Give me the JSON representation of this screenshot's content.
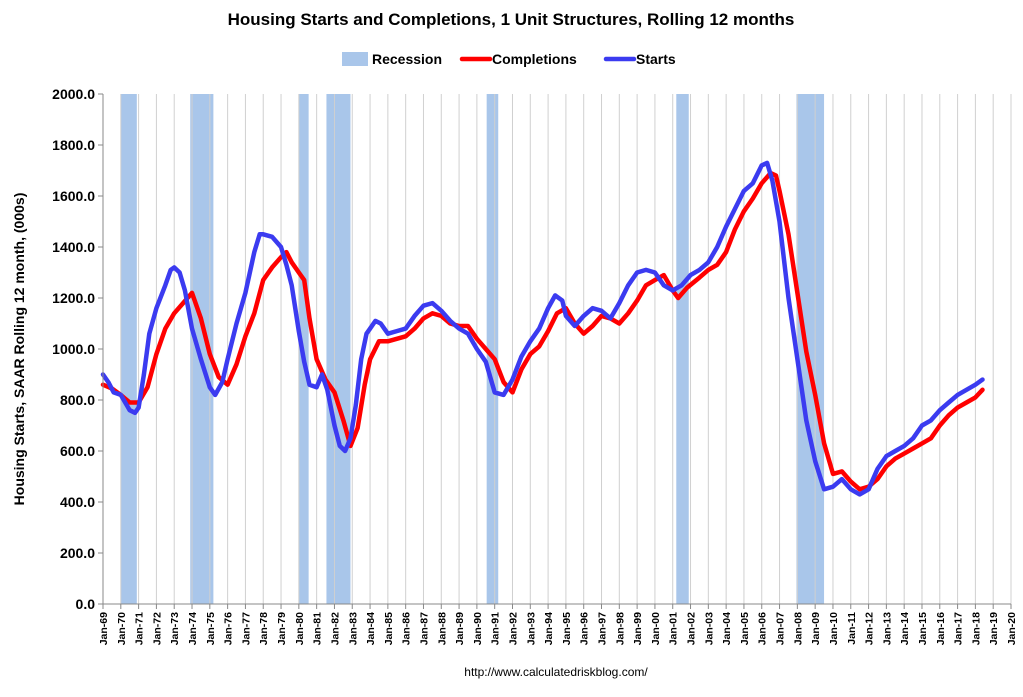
{
  "chart_data": {
    "type": "line",
    "title": "Housing Starts and Completions, 1 Unit Structures, Rolling 12 months",
    "ylabel": "Housing Starts, SAAR Rolling 12 month, (000s)",
    "xlabel": "",
    "source": "http://www.calculatedriskblog.com/",
    "ylim": [
      0,
      2000
    ],
    "yticks": [
      "0.0",
      "200.0",
      "400.0",
      "600.0",
      "800.0",
      "1000.0",
      "1200.0",
      "1400.0",
      "1600.0",
      "1800.0",
      "2000.0"
    ],
    "xlim": [
      1969.0,
      2020.0
    ],
    "xtick_labels": [
      "Jan-69",
      "Jan-70",
      "Jan-71",
      "Jan-72",
      "Jan-73",
      "Jan-74",
      "Jan-75",
      "Jan-76",
      "Jan-77",
      "Jan-78",
      "Jan-79",
      "Jan-80",
      "Jan-81",
      "Jan-82",
      "Jan-83",
      "Jan-84",
      "Jan-85",
      "Jan-86",
      "Jan-87",
      "Jan-88",
      "Jan-89",
      "Jan-90",
      "Jan-91",
      "Jan-92",
      "Jan-93",
      "Jan-94",
      "Jan-95",
      "Jan-96",
      "Jan-97",
      "Jan-98",
      "Jan-99",
      "Jan-00",
      "Jan-01",
      "Jan-02",
      "Jan-03",
      "Jan-04",
      "Jan-05",
      "Jan-06",
      "Jan-07",
      "Jan-08",
      "Jan-09",
      "Jan-10",
      "Jan-11",
      "Jan-12",
      "Jan-13",
      "Jan-14",
      "Jan-15",
      "Jan-16",
      "Jan-17",
      "Jan-18",
      "Jan-19",
      "Jan-20"
    ],
    "grid": "vertical",
    "legend_placement": "top",
    "legend": [
      {
        "name": "Recession",
        "color": "#a9c6ea",
        "kind": "box"
      },
      {
        "name": "Completions",
        "color": "#ff0000",
        "kind": "line"
      },
      {
        "name": "Starts",
        "color": "#3b3bf0",
        "kind": "line"
      }
    ],
    "recessions": [
      [
        1970.0,
        1970.9
      ],
      [
        1973.9,
        1975.2
      ],
      [
        1980.0,
        1980.55
      ],
      [
        1981.55,
        1982.9
      ],
      [
        1990.55,
        1991.2
      ],
      [
        2001.2,
        2001.9
      ],
      [
        2007.95,
        2009.5
      ]
    ],
    "series": [
      {
        "name": "Completions",
        "color": "#ff0000",
        "points": [
          [
            1969.0,
            860
          ],
          [
            1969.5,
            845
          ],
          [
            1970.0,
            820
          ],
          [
            1970.5,
            790
          ],
          [
            1971.0,
            790
          ],
          [
            1971.5,
            850
          ],
          [
            1972.0,
            980
          ],
          [
            1972.5,
            1080
          ],
          [
            1973.0,
            1140
          ],
          [
            1973.5,
            1180
          ],
          [
            1974.0,
            1220
          ],
          [
            1974.5,
            1120
          ],
          [
            1975.0,
            980
          ],
          [
            1975.5,
            890
          ],
          [
            1976.0,
            860
          ],
          [
            1976.5,
            940
          ],
          [
            1977.0,
            1050
          ],
          [
            1977.5,
            1140
          ],
          [
            1978.0,
            1270
          ],
          [
            1978.5,
            1320
          ],
          [
            1979.0,
            1360
          ],
          [
            1979.3,
            1380
          ],
          [
            1979.6,
            1340
          ],
          [
            1980.0,
            1300
          ],
          [
            1980.3,
            1270
          ],
          [
            1980.6,
            1120
          ],
          [
            1981.0,
            960
          ],
          [
            1981.5,
            880
          ],
          [
            1982.0,
            830
          ],
          [
            1982.5,
            720
          ],
          [
            1982.9,
            620
          ],
          [
            1983.3,
            690
          ],
          [
            1983.7,
            860
          ],
          [
            1984.0,
            960
          ],
          [
            1984.5,
            1030
          ],
          [
            1985.0,
            1030
          ],
          [
            1986.0,
            1050
          ],
          [
            1986.5,
            1080
          ],
          [
            1987.0,
            1120
          ],
          [
            1987.5,
            1140
          ],
          [
            1988.0,
            1130
          ],
          [
            1988.5,
            1100
          ],
          [
            1989.0,
            1090
          ],
          [
            1989.5,
            1090
          ],
          [
            1990.0,
            1040
          ],
          [
            1990.5,
            1000
          ],
          [
            1991.0,
            960
          ],
          [
            1991.5,
            870
          ],
          [
            1992.0,
            830
          ],
          [
            1992.5,
            920
          ],
          [
            1993.0,
            980
          ],
          [
            1993.5,
            1010
          ],
          [
            1994.0,
            1070
          ],
          [
            1994.5,
            1140
          ],
          [
            1995.0,
            1160
          ],
          [
            1995.5,
            1100
          ],
          [
            1996.0,
            1060
          ],
          [
            1996.5,
            1090
          ],
          [
            1997.0,
            1130
          ],
          [
            1997.5,
            1120
          ],
          [
            1998.0,
            1100
          ],
          [
            1998.5,
            1140
          ],
          [
            1999.0,
            1190
          ],
          [
            1999.5,
            1250
          ],
          [
            2000.0,
            1270
          ],
          [
            2000.5,
            1290
          ],
          [
            2001.0,
            1230
          ],
          [
            2001.3,
            1200
          ],
          [
            2001.8,
            1240
          ],
          [
            2002.5,
            1280
          ],
          [
            2003.0,
            1310
          ],
          [
            2003.5,
            1330
          ],
          [
            2004.0,
            1380
          ],
          [
            2004.5,
            1470
          ],
          [
            2005.0,
            1540
          ],
          [
            2005.5,
            1590
          ],
          [
            2006.0,
            1650
          ],
          [
            2006.5,
            1690
          ],
          [
            2006.8,
            1680
          ],
          [
            2007.0,
            1620
          ],
          [
            2007.5,
            1450
          ],
          [
            2008.0,
            1220
          ],
          [
            2008.5,
            990
          ],
          [
            2009.0,
            820
          ],
          [
            2009.5,
            630
          ],
          [
            2010.0,
            510
          ],
          [
            2010.5,
            520
          ],
          [
            2011.0,
            480
          ],
          [
            2011.5,
            450
          ],
          [
            2012.0,
            460
          ],
          [
            2012.5,
            490
          ],
          [
            2013.0,
            540
          ],
          [
            2013.5,
            570
          ],
          [
            2014.0,
            590
          ],
          [
            2014.5,
            610
          ],
          [
            2015.0,
            630
          ],
          [
            2015.5,
            650
          ],
          [
            2016.0,
            700
          ],
          [
            2016.5,
            740
          ],
          [
            2017.0,
            770
          ],
          [
            2017.5,
            790
          ],
          [
            2018.0,
            810
          ],
          [
            2018.4,
            840
          ]
        ]
      },
      {
        "name": "Starts",
        "color": "#3b3bf0",
        "points": [
          [
            1969.0,
            900
          ],
          [
            1969.3,
            870
          ],
          [
            1969.6,
            830
          ],
          [
            1970.0,
            820
          ],
          [
            1970.5,
            760
          ],
          [
            1970.8,
            750
          ],
          [
            1971.0,
            770
          ],
          [
            1971.3,
            900
          ],
          [
            1971.6,
            1060
          ],
          [
            1972.0,
            1160
          ],
          [
            1972.5,
            1250
          ],
          [
            1972.8,
            1310
          ],
          [
            1973.0,
            1320
          ],
          [
            1973.3,
            1300
          ],
          [
            1973.6,
            1230
          ],
          [
            1974.0,
            1080
          ],
          [
            1974.5,
            960
          ],
          [
            1975.0,
            850
          ],
          [
            1975.3,
            820
          ],
          [
            1975.7,
            870
          ],
          [
            1976.0,
            960
          ],
          [
            1976.5,
            1100
          ],
          [
            1977.0,
            1220
          ],
          [
            1977.5,
            1380
          ],
          [
            1977.8,
            1450
          ],
          [
            1978.0,
            1450
          ],
          [
            1978.5,
            1440
          ],
          [
            1979.0,
            1400
          ],
          [
            1979.3,
            1330
          ],
          [
            1979.6,
            1250
          ],
          [
            1980.0,
            1070
          ],
          [
            1980.3,
            950
          ],
          [
            1980.6,
            860
          ],
          [
            1981.0,
            850
          ],
          [
            1981.3,
            900
          ],
          [
            1981.6,
            840
          ],
          [
            1982.0,
            700
          ],
          [
            1982.3,
            620
          ],
          [
            1982.6,
            600
          ],
          [
            1982.9,
            650
          ],
          [
            1983.2,
            780
          ],
          [
            1983.5,
            960
          ],
          [
            1983.8,
            1060
          ],
          [
            1984.0,
            1080
          ],
          [
            1984.3,
            1110
          ],
          [
            1984.6,
            1100
          ],
          [
            1985.0,
            1060
          ],
          [
            1985.5,
            1070
          ],
          [
            1986.0,
            1080
          ],
          [
            1986.5,
            1130
          ],
          [
            1987.0,
            1170
          ],
          [
            1987.5,
            1180
          ],
          [
            1988.0,
            1150
          ],
          [
            1988.5,
            1110
          ],
          [
            1989.0,
            1080
          ],
          [
            1989.5,
            1060
          ],
          [
            1990.0,
            1000
          ],
          [
            1990.5,
            950
          ],
          [
            1991.0,
            830
          ],
          [
            1991.5,
            820
          ],
          [
            1992.0,
            880
          ],
          [
            1992.5,
            970
          ],
          [
            1993.0,
            1030
          ],
          [
            1993.5,
            1080
          ],
          [
            1994.0,
            1160
          ],
          [
            1994.4,
            1210
          ],
          [
            1994.8,
            1190
          ],
          [
            1995.0,
            1130
          ],
          [
            1995.5,
            1090
          ],
          [
            1996.0,
            1130
          ],
          [
            1996.5,
            1160
          ],
          [
            1997.0,
            1150
          ],
          [
            1997.5,
            1120
          ],
          [
            1998.0,
            1180
          ],
          [
            1998.5,
            1250
          ],
          [
            1999.0,
            1300
          ],
          [
            1999.5,
            1310
          ],
          [
            2000.0,
            1300
          ],
          [
            2000.5,
            1250
          ],
          [
            2001.0,
            1230
          ],
          [
            2001.5,
            1250
          ],
          [
            2002.0,
            1290
          ],
          [
            2002.5,
            1310
          ],
          [
            2003.0,
            1340
          ],
          [
            2003.5,
            1400
          ],
          [
            2004.0,
            1480
          ],
          [
            2004.5,
            1550
          ],
          [
            2005.0,
            1620
          ],
          [
            2005.5,
            1650
          ],
          [
            2006.0,
            1720
          ],
          [
            2006.3,
            1730
          ],
          [
            2006.6,
            1660
          ],
          [
            2007.0,
            1500
          ],
          [
            2007.5,
            1200
          ],
          [
            2008.0,
            960
          ],
          [
            2008.5,
            720
          ],
          [
            2009.0,
            560
          ],
          [
            2009.5,
            450
          ],
          [
            2010.0,
            460
          ],
          [
            2010.5,
            490
          ],
          [
            2011.0,
            450
          ],
          [
            2011.5,
            430
          ],
          [
            2012.0,
            450
          ],
          [
            2012.5,
            530
          ],
          [
            2013.0,
            580
          ],
          [
            2013.5,
            600
          ],
          [
            2014.0,
            620
          ],
          [
            2014.5,
            650
          ],
          [
            2015.0,
            700
          ],
          [
            2015.5,
            720
          ],
          [
            2016.0,
            760
          ],
          [
            2016.5,
            790
          ],
          [
            2017.0,
            820
          ],
          [
            2017.5,
            840
          ],
          [
            2018.0,
            860
          ],
          [
            2018.4,
            880
          ]
        ]
      }
    ]
  }
}
